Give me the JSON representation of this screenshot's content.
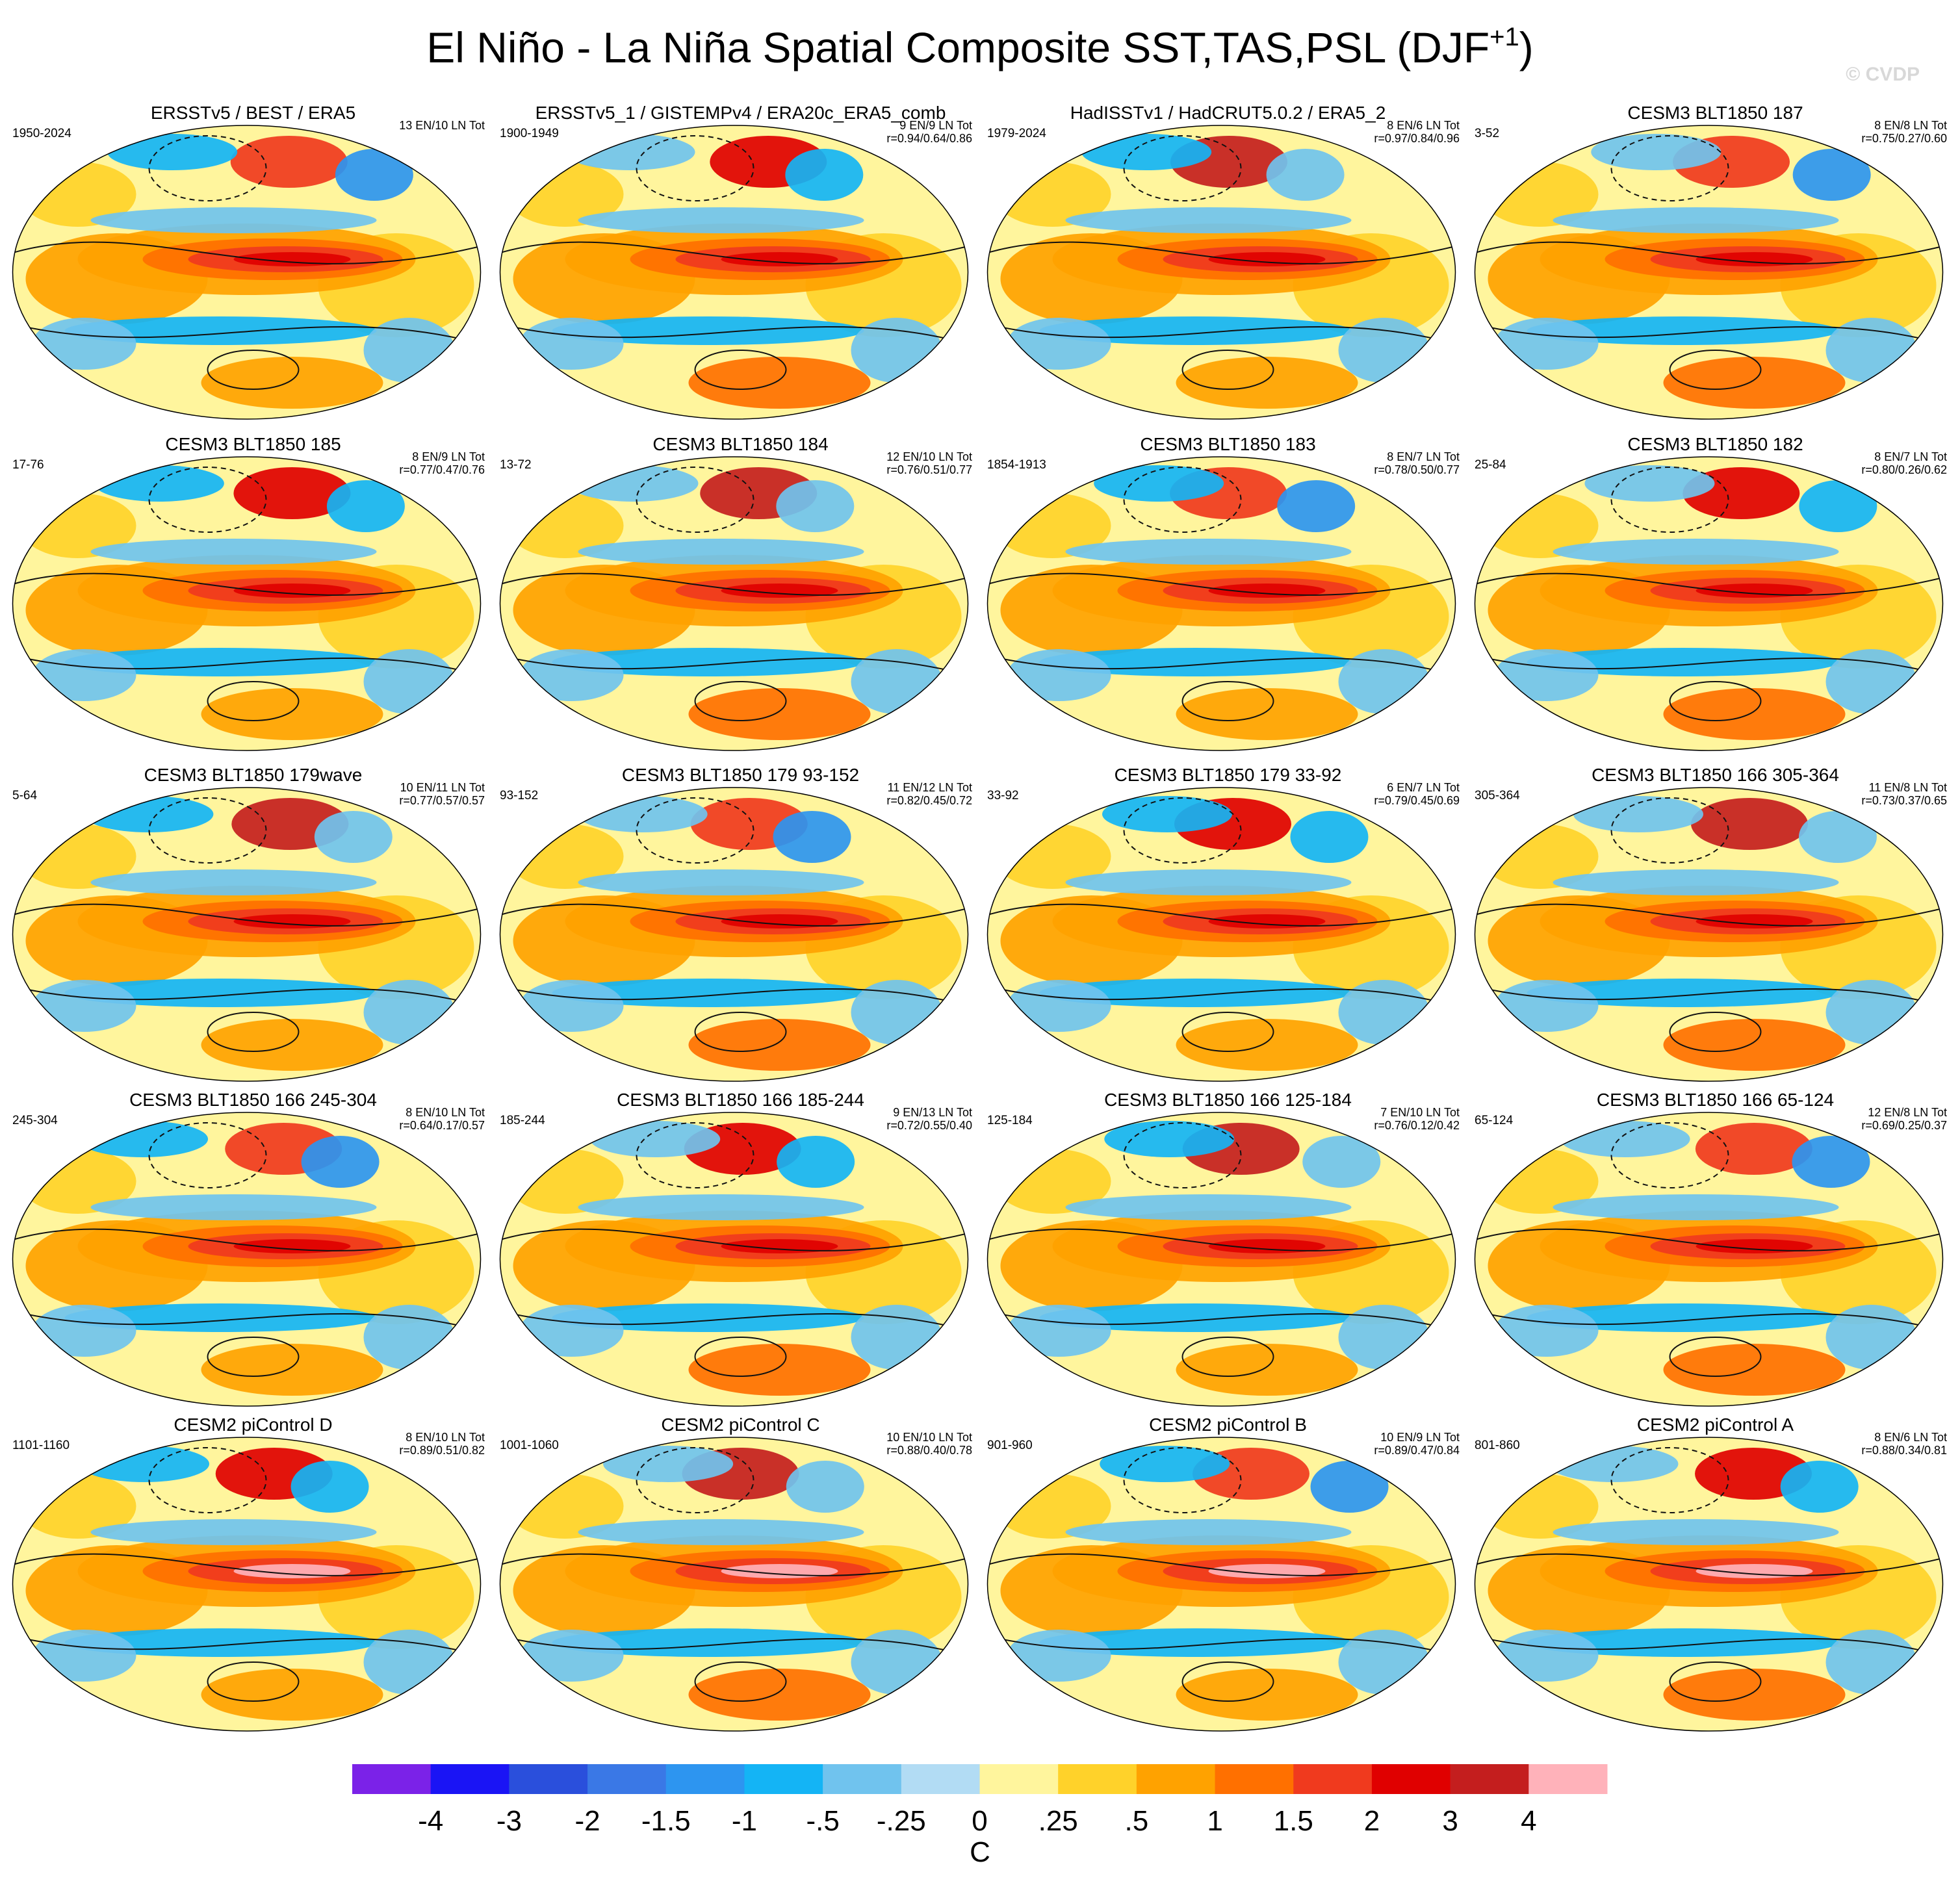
{
  "header": {
    "title": "El Niño - La Niña Spatial Composite SST,TAS,PSL (DJF",
    "title_superscript": "+1",
    "title_closing": ")",
    "watermark": "© CVDP"
  },
  "panels": [
    {
      "title": "ERSSTv5 / BEST / ERA5",
      "period": "1950-2024",
      "counts": "13 EN/10 LN Tot"
    },
    {
      "title": "ERSSTv5_1 / GISTEMPv4 / ERA20c_ERA5_comb",
      "period": "1900-1949",
      "counts": "9 EN/9 LN Tot",
      "correlation": "r=0.94/0.64/0.86"
    },
    {
      "title": "HadISSTv1 / HadCRUT5.0.2 / ERA5_2",
      "period": "1979-2024",
      "counts": "8 EN/6 LN Tot",
      "correlation": "r=0.97/0.84/0.96"
    },
    {
      "title": "CESM3 BLT1850 187",
      "period": "3-52",
      "counts": "8 EN/8 LN Tot",
      "correlation": "r=0.75/0.27/0.60"
    },
    {
      "title": "CESM3 BLT1850 185",
      "period": "17-76",
      "counts": "8 EN/9 LN Tot",
      "correlation": "r=0.77/0.47/0.76"
    },
    {
      "title": "CESM3 BLT1850 184",
      "period": "13-72",
      "counts": "12 EN/10 LN Tot",
      "correlation": "r=0.76/0.51/0.77"
    },
    {
      "title": "CESM3 BLT1850 183",
      "period": "1854-1913",
      "counts": "8 EN/7 LN Tot",
      "correlation": "r=0.78/0.50/0.77"
    },
    {
      "title": "CESM3 BLT1850 182",
      "period": "25-84",
      "counts": "8 EN/7 LN Tot",
      "correlation": "r=0.80/0.26/0.62"
    },
    {
      "title": "CESM3 BLT1850 179wave",
      "period": "5-64",
      "counts": "10 EN/11 LN Tot",
      "correlation": "r=0.77/0.57/0.57"
    },
    {
      "title": "CESM3 BLT1850 179 93-152",
      "period": "93-152",
      "counts": "11 EN/12 LN Tot",
      "correlation": "r=0.82/0.45/0.72"
    },
    {
      "title": "CESM3 BLT1850 179 33-92",
      "period": "33-92",
      "counts": "6 EN/7 LN Tot",
      "correlation": "r=0.79/0.45/0.69"
    },
    {
      "title": "CESM3 BLT1850 166 305-364",
      "period": "305-364",
      "counts": "11 EN/8 LN Tot",
      "correlation": "r=0.73/0.37/0.65"
    },
    {
      "title": "CESM3 BLT1850 166 245-304",
      "period": "245-304",
      "counts": "8 EN/10 LN Tot",
      "correlation": "r=0.64/0.17/0.57"
    },
    {
      "title": "CESM3 BLT1850 166 185-244",
      "period": "185-244",
      "counts": "9 EN/13 LN Tot",
      "correlation": "r=0.72/0.55/0.40"
    },
    {
      "title": "CESM3 BLT1850 166 125-184",
      "period": "125-184",
      "counts": "7 EN/10 LN Tot",
      "correlation": "r=0.76/0.12/0.42"
    },
    {
      "title": "CESM3 BLT1850 166 65-124",
      "period": "65-124",
      "counts": "12 EN/8 LN Tot",
      "correlation": "r=0.69/0.25/0.37"
    },
    {
      "title": "CESM2 piControl D",
      "period": "1101-1160",
      "counts": "8 EN/10 LN Tot",
      "correlation": "r=0.89/0.51/0.82"
    },
    {
      "title": "CESM2 piControl C",
      "period": "1001-1060",
      "counts": "10 EN/10 LN Tot",
      "correlation": "r=0.88/0.40/0.78"
    },
    {
      "title": "CESM2 piControl B",
      "period": "901-960",
      "counts": "10 EN/9 LN Tot",
      "correlation": "r=0.89/0.47/0.84"
    },
    {
      "title": "CESM2 piControl A",
      "period": "801-860",
      "counts": "8 EN/6 LN Tot",
      "correlation": "r=0.88/0.34/0.81"
    }
  ],
  "colorbar": {
    "colors": [
      "#7b22e8",
      "#1a14f5",
      "#2a4fdc",
      "#3a78e6",
      "#2d95f0",
      "#14b4f5",
      "#70c3ee",
      "#b2dcf4",
      "#fff59d",
      "#ffd22a",
      "#ffa200",
      "#ff7000",
      "#f03a1e",
      "#e00000",
      "#c41e1e",
      "#ffb2ba"
    ],
    "labels": [
      "-4",
      "-3",
      "-2",
      "-1.5",
      "-1",
      "-.5",
      "-.25",
      "0",
      ".25",
      ".5",
      "1",
      "1.5",
      "2",
      "3",
      "4"
    ],
    "unit": "C"
  }
}
